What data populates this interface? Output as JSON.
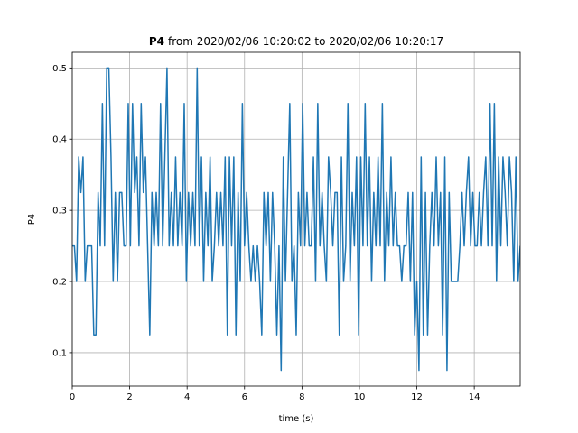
{
  "chart_data": {
    "type": "line",
    "title_name": "P4",
    "title_range": "from 2020/02/06 10:20:02 to 2020/02/06 10:20:17",
    "xlabel": "time (s)",
    "ylabel": "P4",
    "xlim": [
      0,
      15.6
    ],
    "ylim": [
      0.053,
      0.522
    ],
    "xticks": [
      0,
      2,
      4,
      6,
      8,
      10,
      12,
      14
    ],
    "yticks": [
      0.1,
      0.2,
      0.3,
      0.4,
      0.5
    ],
    "grid": true,
    "series": [
      {
        "color": "#1f77b4",
        "x": [
          0,
          0.075,
          0.15,
          0.225,
          0.3,
          0.375,
          0.45,
          0.525,
          0.6,
          0.675,
          0.75,
          0.825,
          0.9,
          0.975,
          1.05,
          1.125,
          1.2,
          1.275,
          1.35,
          1.425,
          1.5,
          1.575,
          1.65,
          1.725,
          1.8,
          1.875,
          1.95,
          2.025,
          2.1,
          2.175,
          2.25,
          2.325,
          2.4,
          2.475,
          2.55,
          2.625,
          2.7,
          2.775,
          2.85,
          2.925,
          3,
          3.075,
          3.15,
          3.225,
          3.3,
          3.375,
          3.45,
          3.525,
          3.6,
          3.675,
          3.75,
          3.825,
          3.9,
          3.975,
          4.05,
          4.125,
          4.2,
          4.275,
          4.35,
          4.425,
          4.5,
          4.575,
          4.65,
          4.725,
          4.8,
          4.875,
          4.95,
          5.025,
          5.1,
          5.175,
          5.25,
          5.325,
          5.4,
          5.475,
          5.55,
          5.625,
          5.7,
          5.775,
          5.85,
          5.925,
          6,
          6.075,
          6.15,
          6.225,
          6.3,
          6.375,
          6.45,
          6.525,
          6.6,
          6.675,
          6.75,
          6.825,
          6.9,
          6.975,
          7.05,
          7.125,
          7.2,
          7.275,
          7.35,
          7.425,
          7.5,
          7.575,
          7.65,
          7.725,
          7.8,
          7.875,
          7.95,
          8.025,
          8.1,
          8.175,
          8.25,
          8.325,
          8.4,
          8.475,
          8.55,
          8.625,
          8.7,
          8.775,
          8.85,
          8.925,
          9,
          9.075,
          9.15,
          9.225,
          9.3,
          9.375,
          9.45,
          9.525,
          9.6,
          9.675,
          9.75,
          9.825,
          9.9,
          9.975,
          10.05,
          10.125,
          10.2,
          10.275,
          10.35,
          10.425,
          10.5,
          10.575,
          10.65,
          10.725,
          10.8,
          10.875,
          10.95,
          11.025,
          11.1,
          11.175,
          11.25,
          11.325,
          11.4,
          11.475,
          11.55,
          11.625,
          11.7,
          11.775,
          11.85,
          11.925,
          12,
          12.075,
          12.15,
          12.225,
          12.3,
          12.375,
          12.45,
          12.525,
          12.6,
          12.675,
          12.75,
          12.825,
          12.9,
          12.975,
          13.05,
          13.125,
          13.2,
          13.275,
          13.35,
          13.425,
          13.5,
          13.575,
          13.65,
          13.725,
          13.8,
          13.875,
          13.95,
          14.025,
          14.1,
          14.175,
          14.25,
          14.325,
          14.4,
          14.475,
          14.55,
          14.625,
          14.7,
          14.775,
          14.85,
          14.925,
          15,
          15.075,
          15.15,
          15.225,
          15.3,
          15.375,
          15.45,
          15.525,
          15.6
        ],
        "values": [
          0.25,
          0.25,
          0.2,
          0.375,
          0.325,
          0.375,
          0.2,
          0.25,
          0.25,
          0.25,
          0.125,
          0.125,
          0.325,
          0.25,
          0.45,
          0.25,
          0.5,
          0.5,
          0.375,
          0.2,
          0.325,
          0.2,
          0.325,
          0.325,
          0.25,
          0.25,
          0.45,
          0.25,
          0.45,
          0.325,
          0.375,
          0.25,
          0.45,
          0.325,
          0.375,
          0.25,
          0.125,
          0.325,
          0.25,
          0.325,
          0.25,
          0.45,
          0.25,
          0.375,
          0.5,
          0.25,
          0.325,
          0.25,
          0.375,
          0.25,
          0.325,
          0.25,
          0.45,
          0.2,
          0.325,
          0.25,
          0.325,
          0.25,
          0.5,
          0.25,
          0.375,
          0.2,
          0.325,
          0.25,
          0.375,
          0.2,
          0.25,
          0.325,
          0.25,
          0.325,
          0.25,
          0.375,
          0.125,
          0.375,
          0.25,
          0.375,
          0.125,
          0.325,
          0.2,
          0.45,
          0.25,
          0.325,
          0.25,
          0.2,
          0.25,
          0.2,
          0.25,
          0.2,
          0.125,
          0.325,
          0.25,
          0.325,
          0.2,
          0.325,
          0.25,
          0.125,
          0.25,
          0.075,
          0.375,
          0.2,
          0.325,
          0.45,
          0.2,
          0.25,
          0.125,
          0.325,
          0.25,
          0.45,
          0.25,
          0.325,
          0.25,
          0.25,
          0.375,
          0.2,
          0.45,
          0.25,
          0.325,
          0.25,
          0.2,
          0.375,
          0.325,
          0.25,
          0.325,
          0.325,
          0.125,
          0.375,
          0.2,
          0.25,
          0.45,
          0.2,
          0.325,
          0.25,
          0.375,
          0.125,
          0.375,
          0.25,
          0.45,
          0.25,
          0.375,
          0.2,
          0.325,
          0.25,
          0.375,
          0.25,
          0.45,
          0.2,
          0.325,
          0.25,
          0.375,
          0.25,
          0.325,
          0.25,
          0.25,
          0.2,
          0.25,
          0.25,
          0.325,
          0.2,
          0.325,
          0.125,
          0.2,
          0.075,
          0.375,
          0.125,
          0.325,
          0.125,
          0.25,
          0.325,
          0.25,
          0.375,
          0.25,
          0.325,
          0.125,
          0.375,
          0.075,
          0.325,
          0.2,
          0.2,
          0.2,
          0.2,
          0.25,
          0.325,
          0.25,
          0.325,
          0.375,
          0.25,
          0.325,
          0.25,
          0.25,
          0.325,
          0.25,
          0.325,
          0.375,
          0.25,
          0.45,
          0.25,
          0.45,
          0.2,
          0.375,
          0.25,
          0.375,
          0.325,
          0.25,
          0.375,
          0.325,
          0.2,
          0.375,
          0.2,
          0.25
        ]
      }
    ]
  }
}
